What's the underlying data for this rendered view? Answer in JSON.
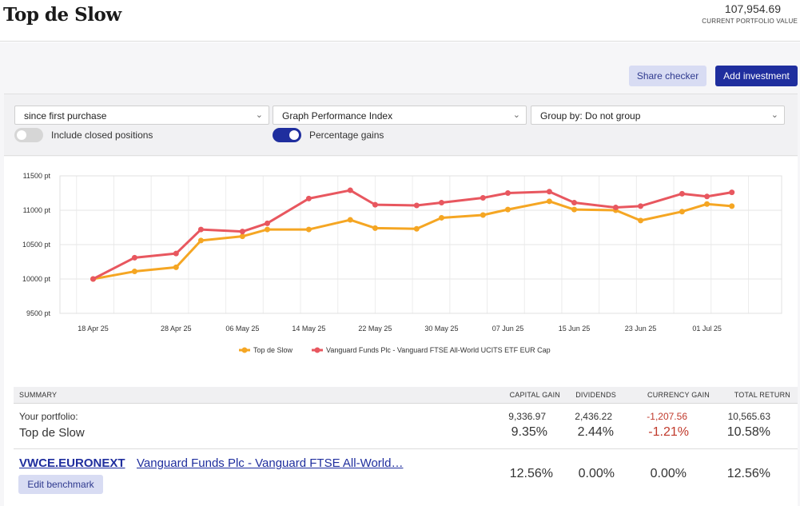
{
  "header": {
    "title": "Top de Slow",
    "portfolio_value": "107,954.69",
    "portfolio_value_label": "CURRENT PORTFOLIO VALUE"
  },
  "actions": {
    "share_checker": "Share checker",
    "add_investment": "Add investment"
  },
  "controls": {
    "period_select": "since first purchase",
    "graph_select": "Graph Performance Index",
    "group_select": "Group by: Do not group",
    "include_closed": {
      "label": "Include closed positions",
      "on": false
    },
    "percentage_gains": {
      "label": "Percentage gains",
      "on": true
    }
  },
  "colors": {
    "accent": "#1f2e9e",
    "portfolio_line": "#f5a623",
    "benchmark_line": "#e8575f",
    "negative": "#c0392b"
  },
  "chart_data": {
    "type": "line",
    "y_tick_labels": [
      "9500 pt",
      "10000 pt",
      "10500 pt",
      "11000 pt",
      "11500 pt"
    ],
    "y_ticks": [
      9500,
      10000,
      10500,
      11000,
      11500
    ],
    "ylim": [
      9500,
      11500
    ],
    "x_tick_labels": [
      "18 Apr 25",
      "28 Apr 25",
      "06 May 25",
      "14 May 25",
      "22 May 25",
      "30 May 25",
      "07 Jun 25",
      "15 Jun 25",
      "23 Jun 25",
      "01 Jul 25"
    ],
    "x": [
      "2025-04-18",
      "2025-04-23",
      "2025-04-28",
      "2025-05-01",
      "2025-05-06",
      "2025-05-09",
      "2025-05-14",
      "2025-05-19",
      "2025-05-22",
      "2025-05-27",
      "2025-05-30",
      "2025-06-04",
      "2025-06-07",
      "2025-06-12",
      "2025-06-15",
      "2025-06-20",
      "2025-06-23",
      "2025-06-28",
      "2025-07-01",
      "2025-07-04"
    ],
    "series": [
      {
        "name": "Top de Slow",
        "color": "#f5a623",
        "values": [
          10000,
          10110,
          10170,
          10560,
          10620,
          10720,
          10720,
          10860,
          10740,
          10730,
          10890,
          10930,
          11010,
          11130,
          11010,
          11000,
          10850,
          10980,
          11090,
          11060
        ]
      },
      {
        "name": "Vanguard Funds Plc - Vanguard FTSE All-World UCITS ETF EUR Cap",
        "color": "#e8575f",
        "values": [
          10000,
          10310,
          10370,
          10720,
          10690,
          10810,
          11170,
          11290,
          11080,
          11070,
          11110,
          11180,
          11250,
          11270,
          11110,
          11040,
          11060,
          11240,
          11200,
          11260
        ]
      }
    ],
    "grid": true,
    "legend": "bottom-center"
  },
  "summary": {
    "headers": {
      "summary": "SUMMARY",
      "capital_gain": "CAPITAL GAIN",
      "dividends": "DIVIDENDS",
      "currency_gain": "CURRENCY GAIN",
      "total_return": "TOTAL RETURN"
    },
    "portfolio": {
      "label": "Your portfolio:",
      "name": "Top de Slow",
      "capital_gain_abs": "9,336.97",
      "dividends_abs": "2,436.22",
      "currency_gain_abs": "-1,207.56",
      "total_return_abs": "10,565.63",
      "capital_gain_pct": "9.35%",
      "dividends_pct": "2.44%",
      "currency_gain_pct": "-1.21%",
      "total_return_pct": "10.58%"
    },
    "benchmark": {
      "ticker": "VWCE.EURONEXT",
      "name": "Vanguard Funds Plc - Vanguard FTSE All-World…",
      "edit_label": "Edit benchmark",
      "capital_gain_pct": "12.56%",
      "dividends_pct": "0.00%",
      "currency_gain_pct": "0.00%",
      "total_return_pct": "12.56%"
    }
  }
}
